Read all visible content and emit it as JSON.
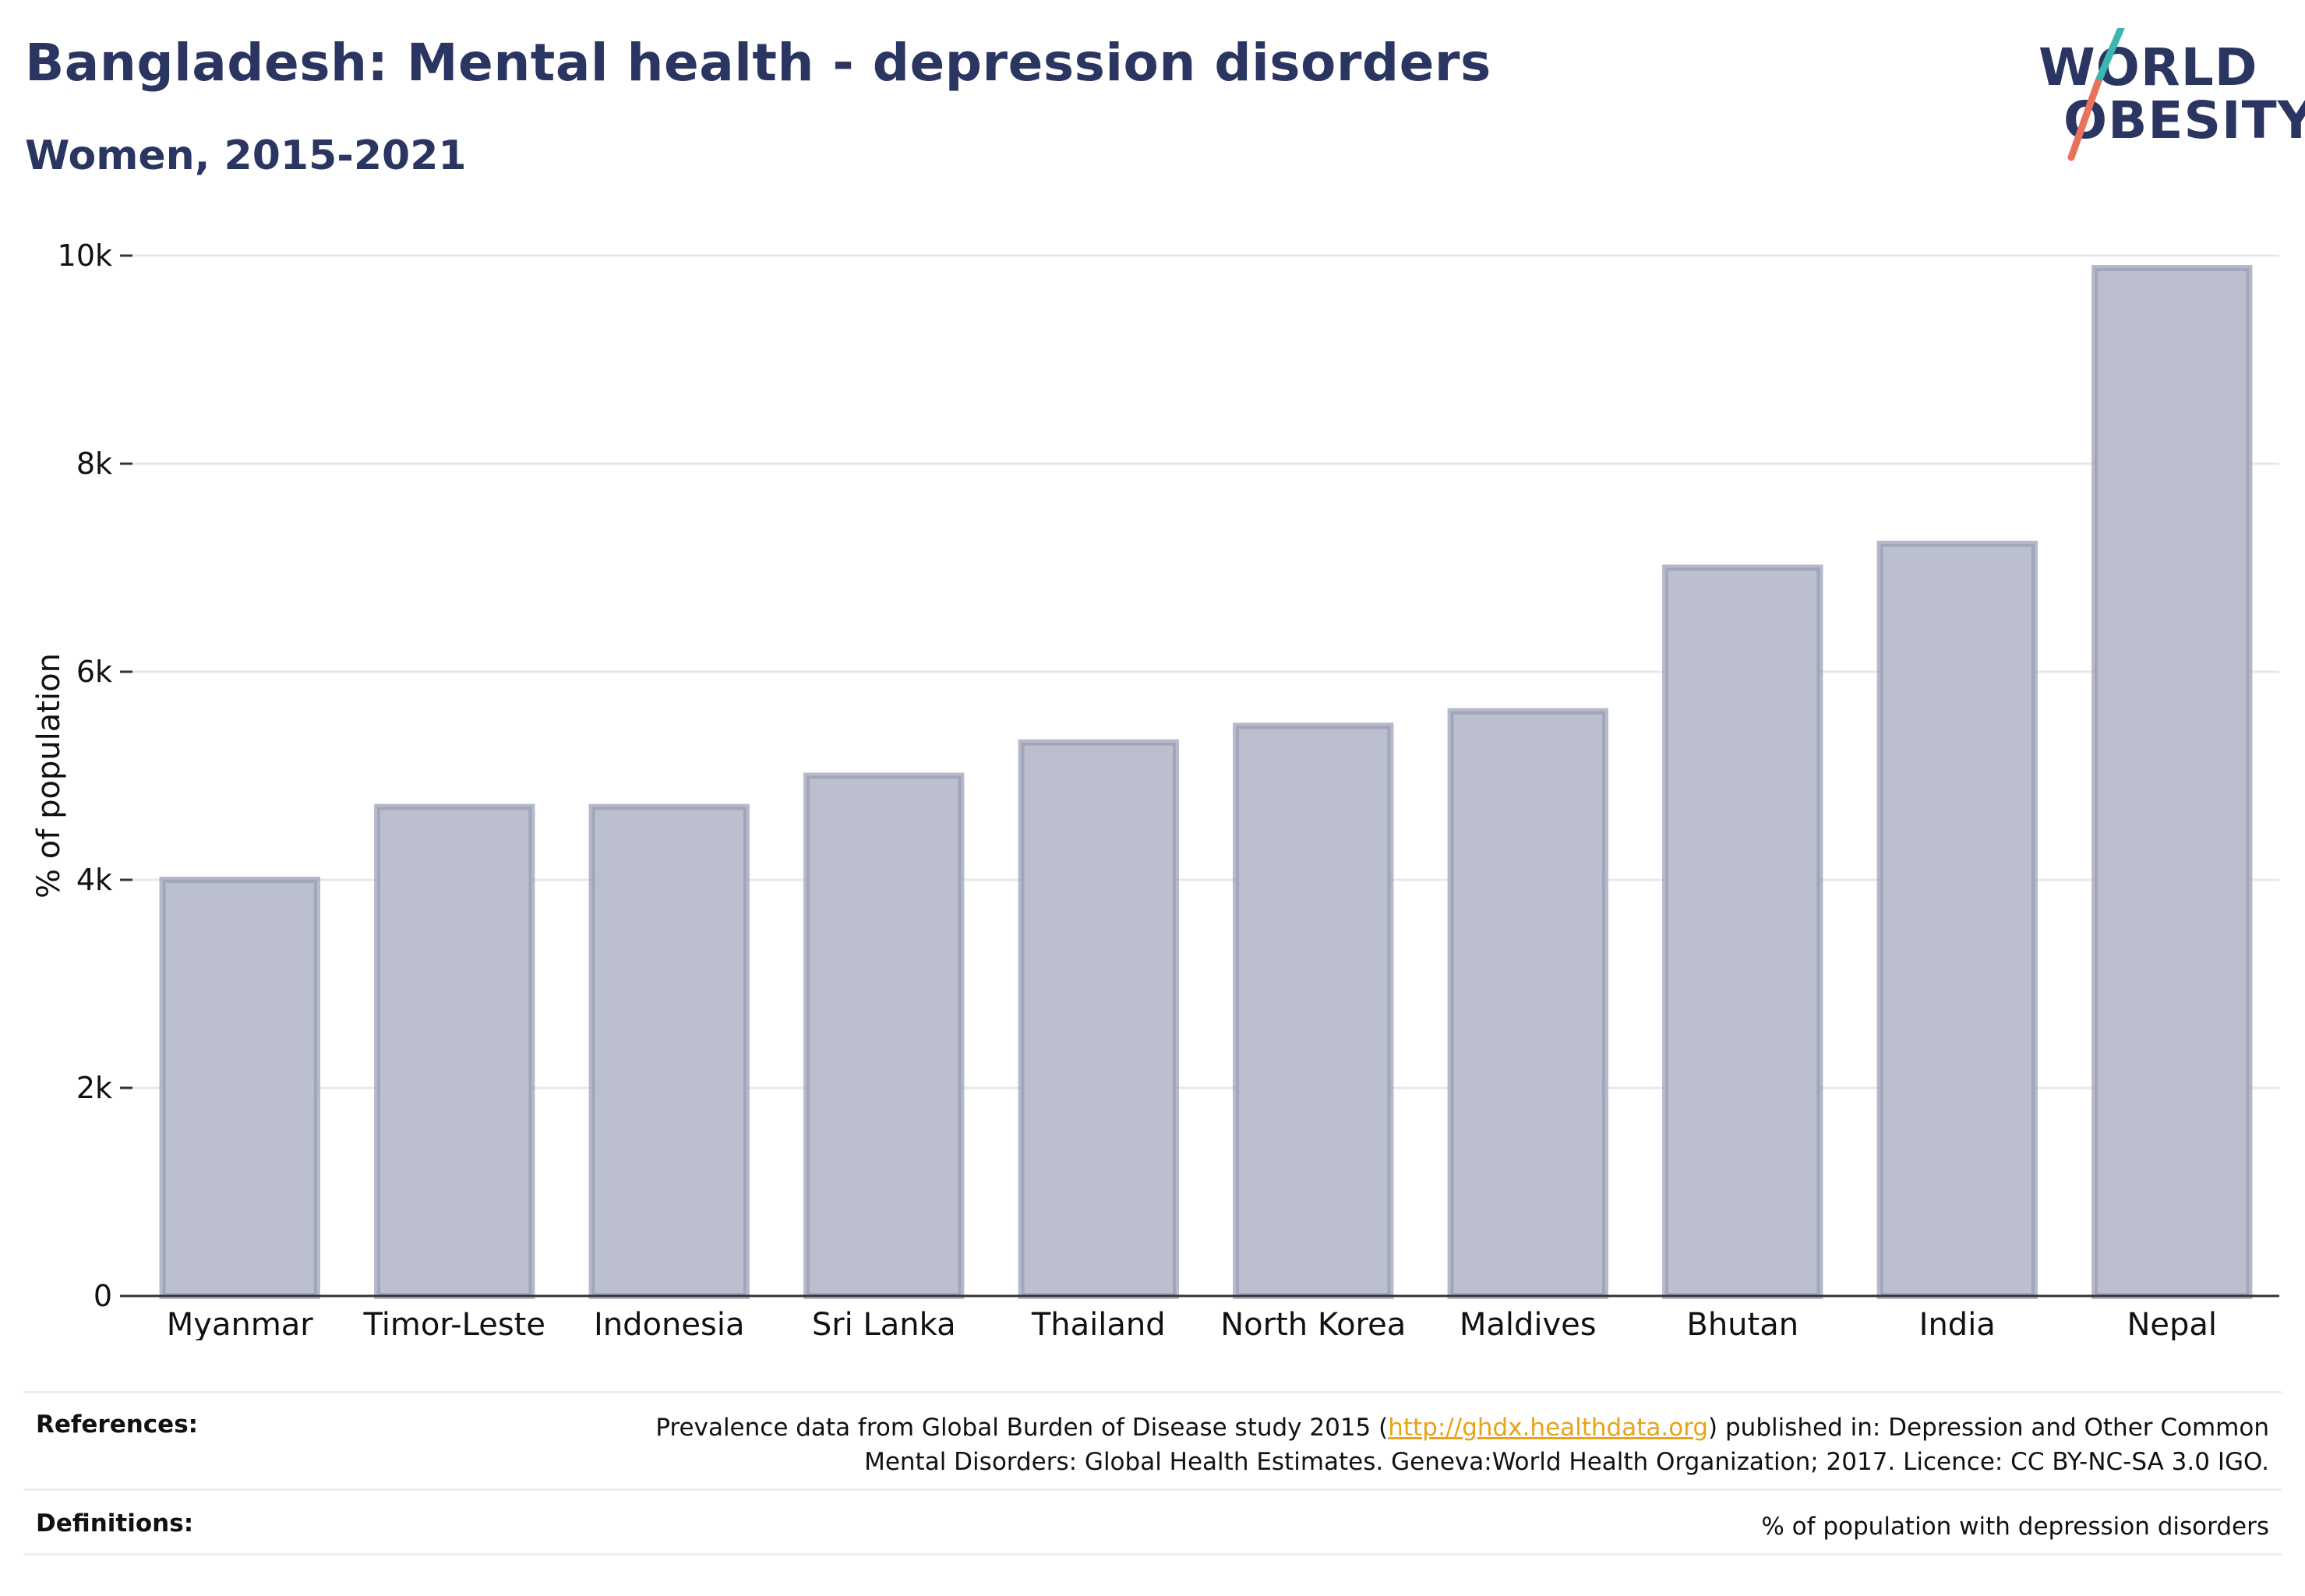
{
  "header": {
    "title": "Bangladesh: Mental health - depression disorders",
    "subtitle": "Women, 2015-2021"
  },
  "logo": {
    "line1": "WORLD",
    "line2": "OBESITY",
    "colors": {
      "text": "#2b3561",
      "slash_top": "#3bb6b0",
      "slash_bottom": "#e8735a"
    }
  },
  "chart_data": {
    "type": "bar",
    "categories": [
      "Myanmar",
      "Timor-Leste",
      "Indonesia",
      "Sri Lanka",
      "Thailand",
      "North Korea",
      "Maldives",
      "Bhutan",
      "India",
      "Nepal"
    ],
    "values": [
      4000,
      4700,
      4700,
      5000,
      5320,
      5480,
      5620,
      7000,
      7230,
      9880
    ],
    "ylabel": "% of population",
    "ylim": [
      0,
      10000
    ],
    "yticks": [
      0,
      2000,
      4000,
      6000,
      8000,
      10000
    ],
    "ytick_labels": [
      "0",
      "2k",
      "4k",
      "6k",
      "8k",
      "10k"
    ],
    "grid": true,
    "colors": {
      "bar_fill": "#bcc0ce",
      "bar_stroke": "#959bb4",
      "grid": "#e6e8ef",
      "axis": "#333333"
    }
  },
  "footer": {
    "references_label": "References:",
    "references_text_before": "Prevalence data from Global Burden of Disease study 2015 (",
    "references_link": "http://ghdx.healthdata.org",
    "references_text_after": ") published in: Depression and Other Common",
    "references_text_line2": "Mental Disorders: Global Health Estimates. Geneva:World Health Organization; 2017. Licence: CC BY-NC-SA 3.0 IGO.",
    "definitions_label": "Definitions:",
    "definitions_text": "% of population with depression disorders"
  }
}
